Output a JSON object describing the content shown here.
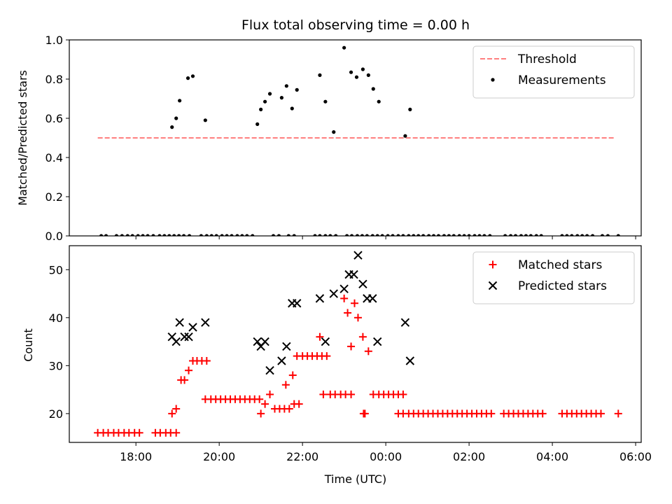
{
  "chart_data": [
    {
      "type": "scatter",
      "title": "Flux total observing time = 0.00 h",
      "xlabel": "",
      "ylabel": "Matched/Predicted stars",
      "xlim": [
        "16:24",
        "06:08"
      ],
      "ylim": [
        0,
        1.0
      ],
      "yticks": [
        0.0,
        0.2,
        0.4,
        0.6,
        0.8,
        1.0
      ],
      "yticklabels": [
        "0.0",
        "0.2",
        "0.4",
        "0.6",
        "0.8",
        "1.0"
      ],
      "xticks": [
        "18:00",
        "20:00",
        "22:00",
        "00:00",
        "02:00",
        "04:00",
        "06:00"
      ],
      "legend": {
        "position": "top-right"
      },
      "threshold": {
        "name": "Threshold",
        "value": 0.5,
        "x_start": "17:05",
        "x_end": "05:30",
        "color": "#ff7f7f",
        "style": "dashed"
      },
      "series": [
        {
          "name": "Measurements",
          "color": "#000000",
          "marker": "dot",
          "x": [
            "17:10",
            "17:17",
            "17:32",
            "17:40",
            "17:48",
            "17:55",
            "18:03",
            "18:10",
            "18:17",
            "18:25",
            "18:34",
            "18:41",
            "18:48",
            "18:55",
            "19:02",
            "19:09",
            "19:17",
            "19:34",
            "19:42",
            "19:49",
            "19:56",
            "20:04",
            "20:11",
            "20:18",
            "20:26",
            "20:33",
            "20:40",
            "20:48",
            "21:18",
            "21:26",
            "21:40",
            "21:48",
            "22:18",
            "22:25",
            "22:33",
            "22:40",
            "22:48",
            "23:04",
            "23:11",
            "23:19",
            "23:26",
            "23:33",
            "23:41",
            "23:48",
            "23:55",
            "00:03",
            "00:10",
            "00:18",
            "00:25",
            "00:33",
            "00:40",
            "00:47",
            "00:54",
            "01:02",
            "01:09",
            "01:16",
            "01:24",
            "01:31",
            "01:38",
            "01:46",
            "01:53",
            "02:00",
            "02:08",
            "02:15",
            "02:22",
            "02:30",
            "02:52",
            "03:00",
            "03:07",
            "03:15",
            "03:22",
            "03:29",
            "03:37",
            "03:44",
            "04:14",
            "04:21",
            "04:28",
            "04:36",
            "04:43",
            "04:50",
            "04:58",
            "05:12",
            "05:20",
            "05:35",
            "18:52",
            "18:58",
            "19:03",
            "19:15",
            "19:22",
            "19:40",
            "20:55",
            "21:00",
            "21:06",
            "21:13",
            "21:30",
            "21:37",
            "21:45",
            "21:52",
            "22:25",
            "22:33",
            "22:45",
            "23:00",
            "23:10",
            "23:18",
            "23:27",
            "23:35",
            "23:42",
            "23:50",
            "00:28",
            "00:35"
          ],
          "y": [
            0,
            0,
            0,
            0,
            0,
            0,
            0,
            0,
            0,
            0,
            0,
            0,
            0,
            0,
            0,
            0,
            0,
            0,
            0,
            0,
            0,
            0,
            0,
            0,
            0,
            0,
            0,
            0,
            0,
            0,
            0,
            0,
            0,
            0,
            0,
            0,
            0,
            0,
            0,
            0,
            0,
            0,
            0,
            0,
            0,
            0,
            0,
            0,
            0,
            0,
            0,
            0,
            0,
            0,
            0,
            0,
            0,
            0,
            0,
            0,
            0,
            0,
            0,
            0,
            0,
            0,
            0,
            0,
            0,
            0,
            0,
            0,
            0,
            0,
            0,
            0,
            0,
            0,
            0,
            0,
            0,
            0,
            0,
            0,
            0.555,
            0.6,
            0.69,
            0.805,
            0.815,
            0.59,
            0.57,
            0.645,
            0.685,
            0.725,
            0.705,
            0.765,
            0.65,
            0.745,
            0.82,
            0.685,
            0.53,
            0.96,
            0.835,
            0.81,
            0.85,
            0.82,
            0.75,
            0.685,
            0.51,
            0.645
          ]
        }
      ]
    },
    {
      "type": "scatter",
      "title": "",
      "xlabel": "Time (UTC)",
      "ylabel": "Count",
      "xlim": [
        "16:24",
        "06:08"
      ],
      "ylim": [
        14,
        55
      ],
      "yticks": [
        20,
        30,
        40,
        50
      ],
      "yticklabels": [
        "20",
        "30",
        "40",
        "50"
      ],
      "xticks": [
        "18:00",
        "20:00",
        "22:00",
        "00:00",
        "02:00",
        "04:00",
        "06:00"
      ],
      "xticklabels": [
        "18:00",
        "20:00",
        "22:00",
        "00:00",
        "02:00",
        "04:00",
        "06:00"
      ],
      "legend": {
        "position": "top-right"
      },
      "series": [
        {
          "name": "Matched stars",
          "color": "#ff0000",
          "marker": "plus",
          "x": [
            "17:05",
            "17:13",
            "17:20",
            "17:28",
            "17:35",
            "17:43",
            "17:50",
            "17:58",
            "18:05",
            "18:28",
            "18:35",
            "18:43",
            "18:50",
            "18:58",
            "18:52",
            "18:58",
            "19:05",
            "19:10",
            "19:16",
            "19:22",
            "19:28",
            "19:35",
            "19:42",
            "19:40",
            "19:48",
            "19:55",
            "20:02",
            "20:09",
            "20:16",
            "20:23",
            "20:30",
            "20:37",
            "20:44",
            "20:51",
            "20:58",
            "21:00",
            "21:06",
            "21:13",
            "21:20",
            "21:27",
            "21:34",
            "21:41",
            "21:48",
            "21:55",
            "21:36",
            "21:46",
            "21:52",
            "22:00",
            "22:07",
            "22:14",
            "22:21",
            "22:28",
            "22:35",
            "22:25",
            "22:30",
            "22:40",
            "22:47",
            "22:55",
            "23:02",
            "23:10",
            "23:00",
            "23:05",
            "23:10",
            "23:15",
            "23:20",
            "23:27",
            "23:35",
            "23:42",
            "23:50",
            "23:57",
            "00:04",
            "00:11",
            "00:18",
            "00:25",
            "00:18",
            "00:25",
            "00:33",
            "00:40",
            "00:47",
            "00:54",
            "01:01",
            "01:08",
            "01:15",
            "01:22",
            "01:29",
            "01:36",
            "01:43",
            "01:50",
            "01:57",
            "02:04",
            "02:11",
            "02:18",
            "02:25",
            "02:32",
            "02:50",
            "02:57",
            "03:04",
            "03:11",
            "03:18",
            "03:25",
            "03:32",
            "03:39",
            "03:46",
            "04:14",
            "04:21",
            "04:28",
            "04:35",
            "04:42",
            "04:49",
            "04:56",
            "05:03",
            "05:10",
            "05:35",
            "23:28",
            "23:30"
          ],
          "y": [
            16,
            16,
            16,
            16,
            16,
            16,
            16,
            16,
            16,
            16,
            16,
            16,
            16,
            16,
            20,
            21,
            27,
            27,
            29,
            31,
            31,
            31,
            31,
            23,
            23,
            23,
            23,
            23,
            23,
            23,
            23,
            23,
            23,
            23,
            23,
            20,
            22,
            24,
            21,
            21,
            21,
            21,
            22,
            22,
            26,
            28,
            32,
            32,
            32,
            32,
            32,
            32,
            32,
            36,
            24,
            24,
            24,
            24,
            24,
            24,
            44,
            41,
            34,
            43,
            40,
            36,
            33,
            24,
            24,
            24,
            24,
            24,
            24,
            24,
            20,
            20,
            20,
            20,
            20,
            20,
            20,
            20,
            20,
            20,
            20,
            20,
            20,
            20,
            20,
            20,
            20,
            20,
            20,
            20,
            20,
            20,
            20,
            20,
            20,
            20,
            20,
            20,
            20,
            20,
            20,
            20,
            20,
            20,
            20,
            20,
            20,
            20,
            20,
            20,
            20
          ]
        },
        {
          "name": "Predicted stars",
          "color": "#000000",
          "marker": "x",
          "x": [
            "18:52",
            "18:58",
            "19:03",
            "19:10",
            "19:16",
            "19:22",
            "19:40",
            "20:55",
            "21:00",
            "21:06",
            "21:13",
            "21:30",
            "21:37",
            "21:45",
            "21:52",
            "22:25",
            "22:33",
            "22:45",
            "23:00",
            "23:07",
            "23:14",
            "23:20",
            "23:27",
            "23:33",
            "23:41",
            "23:48",
            "00:28",
            "00:35"
          ],
          "y": [
            36,
            35,
            39,
            36,
            36,
            38,
            39,
            35,
            34,
            35,
            29,
            31,
            34,
            43,
            43,
            44,
            35,
            45,
            46,
            49,
            49,
            53,
            47,
            44,
            44,
            35,
            39,
            31
          ]
        }
      ]
    }
  ]
}
